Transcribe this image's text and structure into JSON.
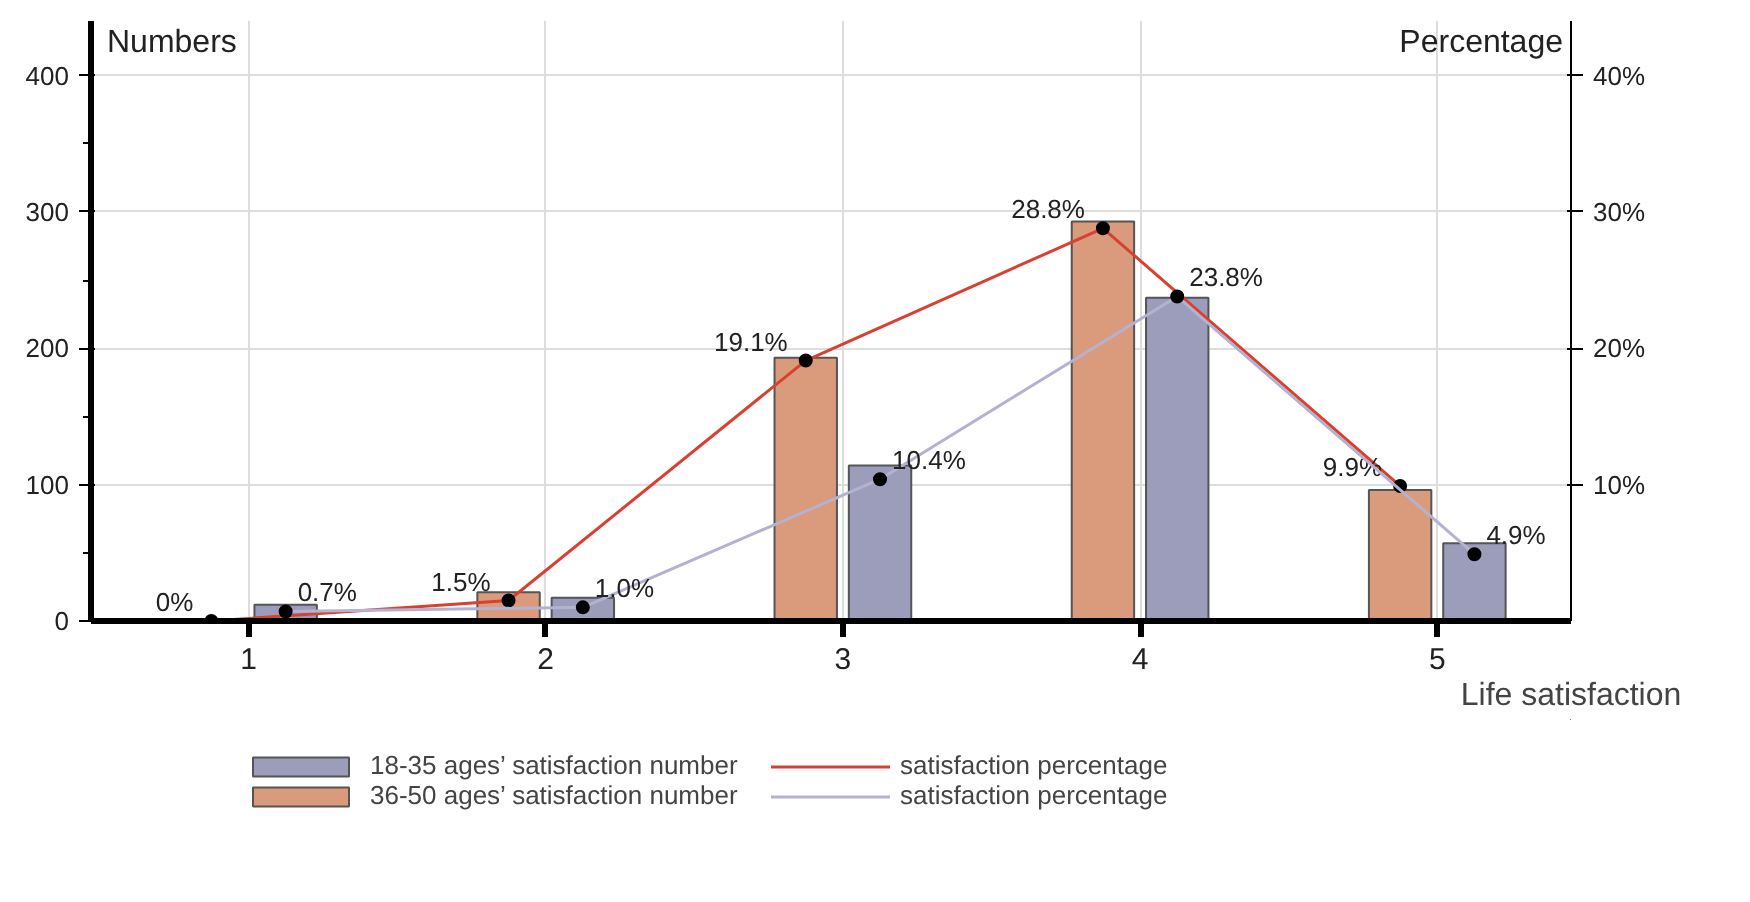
{
  "chart_data": {
    "type": "bar",
    "xlabel": "Life satisfaction",
    "ylabel": "Numbers",
    "y2label": "Percentage",
    "categories": [
      "1",
      "2",
      "3",
      "4",
      "5"
    ],
    "series": [
      {
        "name": "36-50 ages’ satisfaction number",
        "color": "#d99b7b",
        "values": [
          0,
          21,
          193,
          293,
          96
        ]
      },
      {
        "name": "18-35 ages’ satisfaction number",
        "color": "#9b9dbb",
        "values": [
          12,
          17,
          114,
          237,
          57
        ]
      },
      {
        "name": "satisfaction percentage",
        "type": "line",
        "axis": "y2",
        "color": "#d9402f",
        "values": [
          0,
          1.5,
          19.1,
          28.8,
          9.9
        ],
        "value_labels": [
          "0%",
          "1.5%",
          "19.1%",
          "28.8%",
          "9.9%"
        ]
      },
      {
        "name": "satisfaction percentage",
        "type": "line",
        "axis": "y2",
        "color": "#b4b2d0",
        "values": [
          0.7,
          1.0,
          10.4,
          23.8,
          4.9
        ],
        "value_labels": [
          "0.7%",
          "1.0%",
          "10.4%",
          "23.8%",
          "4.9%"
        ]
      }
    ],
    "ylim": [
      0,
      440
    ],
    "yticks": [
      0,
      100,
      200,
      300,
      400
    ],
    "y2lim": [
      0,
      44
    ],
    "y2ticks": [
      {
        "value": 10,
        "label": "10%"
      },
      {
        "value": 20,
        "label": "20%"
      },
      {
        "value": 30,
        "label": "30%"
      },
      {
        "value": 40,
        "label": "40%"
      }
    ],
    "grid": true,
    "legend": "bottom",
    "marker": "circle"
  }
}
